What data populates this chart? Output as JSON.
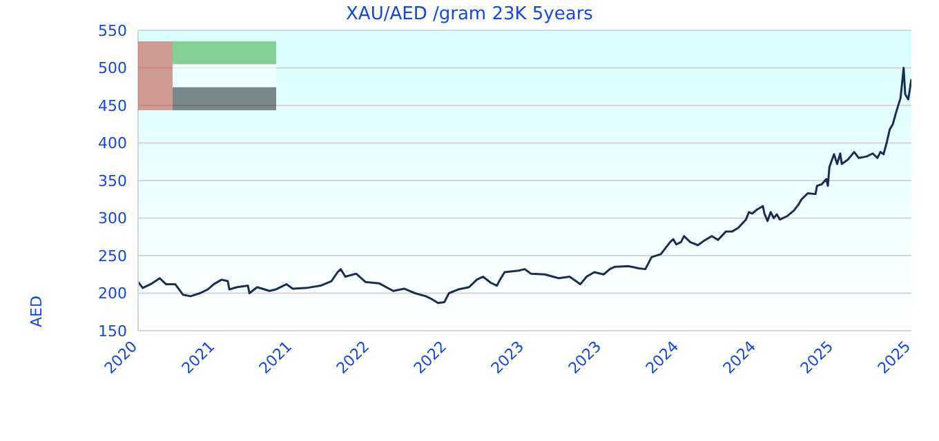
{
  "chart_data": {
    "type": "line",
    "title": "XAU/AED /gram 23K 5years",
    "ylabel": "AED",
    "x": [
      2020.2,
      2020.23,
      2020.29,
      2020.34,
      2020.38,
      2020.44,
      2020.49,
      2020.54,
      2020.6,
      2020.65,
      2020.69,
      2020.74,
      2020.78,
      2020.79,
      2020.84,
      2020.91,
      2020.92,
      2020.97,
      2021.05,
      2021.09,
      2021.16,
      2021.2,
      2021.29,
      2021.38,
      2021.45,
      2021.49,
      2021.51,
      2021.54,
      2021.61,
      2021.67,
      2021.76,
      2021.85,
      2021.92,
      2021.99,
      2022.06,
      2022.1,
      2022.14,
      2022.18,
      2022.21,
      2022.27,
      2022.34,
      2022.39,
      2022.43,
      2022.48,
      2022.52,
      2022.54,
      2022.57,
      2022.66,
      2022.7,
      2022.74,
      2022.83,
      2022.92,
      2022.99,
      2023.06,
      2023.1,
      2023.15,
      2023.21,
      2023.25,
      2023.28,
      2023.37,
      2023.44,
      2023.48,
      2023.52,
      2023.58,
      2023.64,
      2023.66,
      2023.68,
      2023.71,
      2023.73,
      2023.77,
      2023.82,
      2023.86,
      2023.91,
      2023.95,
      2024.0,
      2024.04,
      2024.08,
      2024.13,
      2024.15,
      2024.17,
      2024.2,
      2024.24,
      2024.25,
      2024.27,
      2024.29,
      2024.31,
      2024.33,
      2024.35,
      2024.4,
      2024.44,
      2024.47,
      2024.49,
      2024.53,
      2024.58,
      2024.59,
      2024.62,
      2024.65,
      2024.66,
      2024.67,
      2024.7,
      2024.72,
      2024.74,
      2024.75,
      2024.79,
      2024.83,
      2024.86,
      2024.91,
      2024.95,
      2024.98,
      2025.0,
      2025.02,
      2025.04,
      2025.06,
      2025.08,
      2025.1,
      2025.13,
      2025.15,
      2025.16,
      2025.18,
      2025.2
    ],
    "series": [
      {
        "color": "#1a2e50",
        "values": [
          215,
          207,
          213,
          220,
          212,
          212,
          198,
          196,
          200,
          205,
          212,
          218,
          216,
          205,
          208,
          210,
          200,
          208,
          203,
          205,
          212,
          206,
          207,
          210,
          216,
          228,
          232,
          222,
          226,
          215,
          213,
          203,
          206,
          200,
          196,
          192,
          187,
          188,
          200,
          205,
          208,
          218,
          222,
          214,
          210,
          218,
          228,
          230,
          232,
          226,
          225,
          220,
          222,
          212,
          222,
          228,
          225,
          232,
          235,
          236,
          233,
          232,
          248,
          252,
          268,
          272,
          265,
          268,
          276,
          268,
          264,
          270,
          276,
          271,
          282,
          282,
          287,
          298,
          308,
          306,
          311,
          316,
          306,
          296,
          308,
          300,
          305,
          298,
          303,
          310,
          318,
          325,
          333,
          332,
          343,
          345,
          352,
          343,
          368,
          385,
          372,
          386,
          372,
          378,
          388,
          380,
          382,
          386,
          380,
          388,
          385,
          400,
          418,
          425,
          440,
          460,
          500,
          465,
          458,
          485
        ]
      }
    ],
    "xlim": [
      2020.2,
      2025.2
    ],
    "xticks": [
      {
        "value": 2020.2,
        "label": "2020"
      },
      {
        "value": 2020.7,
        "label": "2021"
      },
      {
        "value": 2021.2,
        "label": "2021"
      },
      {
        "value": 2021.7,
        "label": "2022"
      },
      {
        "value": 2022.2,
        "label": "2022"
      },
      {
        "value": 2022.7,
        "label": "2023"
      },
      {
        "value": 2023.2,
        "label": "2023"
      },
      {
        "value": 2023.7,
        "label": "2024"
      },
      {
        "value": 2024.2,
        "label": "2024"
      },
      {
        "value": 2024.7,
        "label": "2025"
      },
      {
        "value": 2025.2,
        "label": "2025"
      }
    ],
    "ylim": [
      150,
      550
    ],
    "yticks": [
      150,
      200,
      250,
      300,
      350,
      400,
      450,
      500,
      550
    ],
    "grid": "y",
    "line_style": "solid"
  }
}
